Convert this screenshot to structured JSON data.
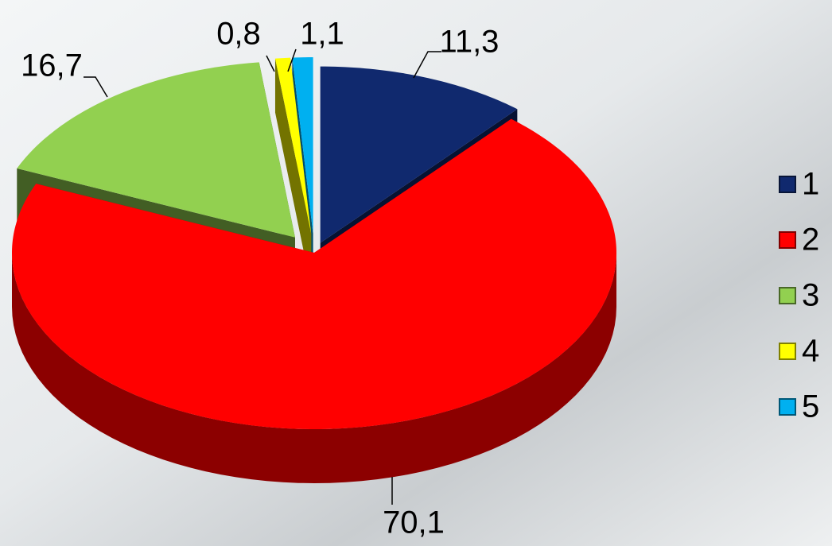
{
  "chart_data": {
    "type": "pie",
    "categories": [
      "1",
      "2",
      "3",
      "4",
      "5"
    ],
    "values": [
      11.3,
      70.1,
      16.7,
      0.8,
      1.1
    ],
    "value_labels": [
      "11,3",
      "70,1",
      "16,7",
      "0,8",
      "1,1"
    ],
    "colors": [
      "#10296e",
      "#ff0000",
      "#92d050",
      "#ffff00",
      "#00b0f0"
    ],
    "legend": "right"
  }
}
